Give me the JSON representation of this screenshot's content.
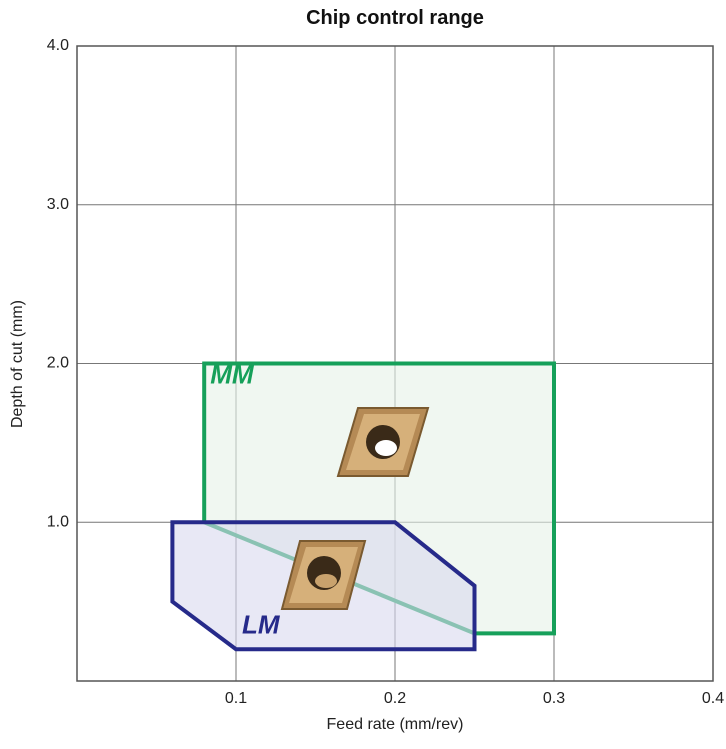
{
  "chart_data": {
    "type": "polygon",
    "title": "Chip control range",
    "x_label": "Feed rate (mm/rev)",
    "y_label": "Depth of cut (mm)",
    "xlim": [
      0,
      0.4
    ],
    "ylim": [
      0,
      4
    ],
    "xticks": [
      0.1,
      0.2,
      0.3,
      0.4
    ],
    "yticks": [
      {
        "value": 1,
        "label": "1.0"
      },
      {
        "value": 2,
        "label": "2.0"
      },
      {
        "value": 3,
        "label": "3.0"
      },
      {
        "value": 4,
        "label": "4.0"
      }
    ],
    "grid": true,
    "series": [
      {
        "name": "MM",
        "color": "#16a05a",
        "fill": "#e6f2e8",
        "x": [
          0.08,
          0.3,
          0.3,
          0.25,
          0.08
        ],
        "y": [
          2.0,
          2.0,
          0.3,
          0.3,
          1.0
        ]
      },
      {
        "name": "LM",
        "color": "#262a8a",
        "fill": "#d8d8ee",
        "x": [
          0.06,
          0.2,
          0.25,
          0.25,
          0.1,
          0.06
        ],
        "y": [
          1.0,
          1.0,
          0.6,
          0.2,
          0.2,
          0.5
        ]
      }
    ]
  }
}
